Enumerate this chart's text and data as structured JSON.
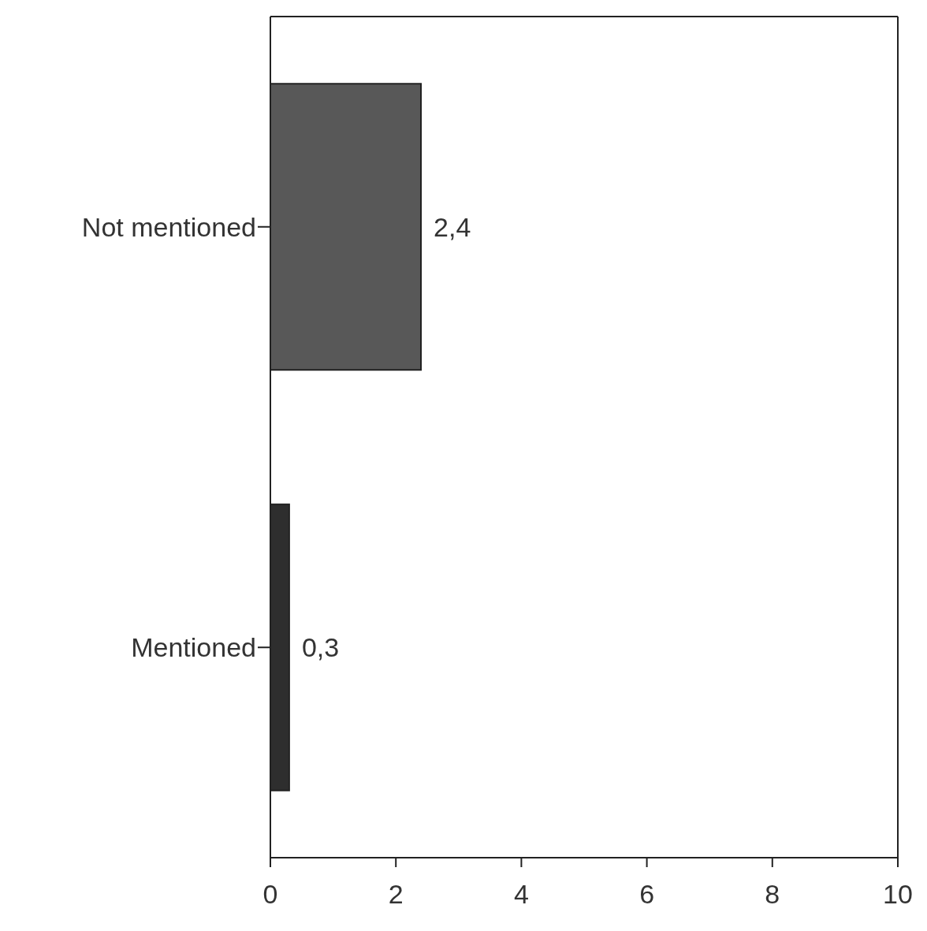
{
  "chart_data": {
    "type": "bar",
    "orientation": "horizontal",
    "categories": [
      "Not mentioned",
      "Mentioned"
    ],
    "values": [
      2.4,
      0.3
    ],
    "colors": [
      "#585858",
      "#2e2e2e"
    ],
    "value_labels": [
      "2,4",
      "0,3"
    ],
    "xlim": [
      0,
      10
    ],
    "xticks": [
      0,
      2,
      4,
      6,
      8,
      10
    ],
    "grid": false
  }
}
